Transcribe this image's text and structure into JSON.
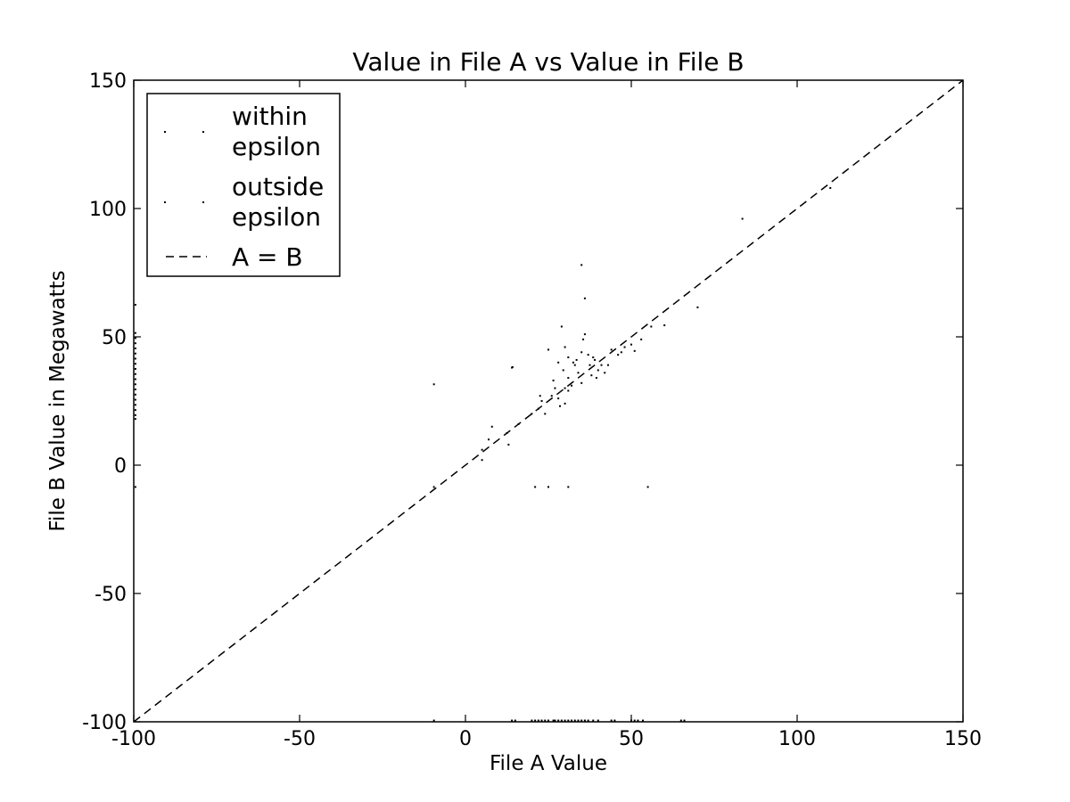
{
  "chart_data": {
    "type": "scatter",
    "title": "Value in File A vs Value in File B",
    "xlabel": "File A Value",
    "ylabel": "File B Value in Megawatts",
    "xlim": [
      -100,
      150
    ],
    "ylim": [
      -100,
      150
    ],
    "xticks": [
      -100,
      -50,
      0,
      50,
      100,
      150
    ],
    "yticks": [
      -100,
      -50,
      0,
      50,
      100,
      150
    ],
    "xtick_labels": [
      "-100",
      "-50",
      "0",
      "50",
      "100",
      "150"
    ],
    "ytick_labels": [
      "-100",
      "-50",
      "0",
      "50",
      "100",
      "150"
    ],
    "grid": false,
    "legend_position": "top-left",
    "legend": [
      {
        "label_lines": [
          "within",
          "epsilon"
        ],
        "marker": "point"
      },
      {
        "label_lines": [
          "outside",
          "epsilon"
        ],
        "marker": "point"
      },
      {
        "label_lines": [
          "A = B"
        ],
        "marker": "dashed-line"
      }
    ],
    "reference_line": {
      "name": "A = B",
      "x": [
        -100,
        150
      ],
      "y": [
        -100,
        150
      ],
      "style": "dashed"
    },
    "series": [
      {
        "marker": "point",
        "color": "#000000",
        "points": [
          [
            -99.5,
            62.5
          ],
          [
            -99.5,
            51.5
          ],
          [
            -99.5,
            49.5
          ],
          [
            -99.5,
            47.5
          ],
          [
            -99.5,
            45.5
          ],
          [
            -99.5,
            43.5
          ],
          [
            -99.5,
            41.5
          ],
          [
            -99.5,
            39.5
          ],
          [
            -99.5,
            37.5
          ],
          [
            -99.5,
            35.5
          ],
          [
            -99.5,
            33.5
          ],
          [
            -99.5,
            31.5
          ],
          [
            -99.5,
            29.5
          ],
          [
            -99.5,
            27.5
          ],
          [
            -99.5,
            25.5
          ],
          [
            -99.5,
            23.5
          ],
          [
            -99.5,
            21.5
          ],
          [
            -99.5,
            19.5
          ],
          [
            -99.5,
            18
          ],
          [
            -99.5,
            -8.5
          ],
          [
            -9.5,
            31.5
          ],
          [
            -9.5,
            -8.5
          ],
          [
            5,
            6
          ],
          [
            5,
            2
          ],
          [
            7,
            10
          ],
          [
            8,
            15
          ],
          [
            12.5,
            12.5
          ],
          [
            13,
            8
          ],
          [
            14,
            38
          ],
          [
            14.2,
            38.2
          ],
          [
            16,
            16
          ],
          [
            20,
            20
          ],
          [
            21,
            -8.5
          ],
          [
            22,
            22
          ],
          [
            22.5,
            27
          ],
          [
            23,
            25
          ],
          [
            24,
            20
          ],
          [
            25,
            45
          ],
          [
            25,
            -8.5
          ],
          [
            26,
            27
          ],
          [
            26.5,
            33
          ],
          [
            27,
            30
          ],
          [
            28,
            40
          ],
          [
            28,
            26
          ],
          [
            28.5,
            23
          ],
          [
            29,
            54
          ],
          [
            29.5,
            37
          ],
          [
            30,
            46
          ],
          [
            30,
            30
          ],
          [
            30,
            24
          ],
          [
            31,
            34
          ],
          [
            31,
            42
          ],
          [
            31,
            29
          ],
          [
            31,
            -8.5
          ],
          [
            32,
            31
          ],
          [
            32.5,
            40
          ],
          [
            33,
            39
          ],
          [
            33.5,
            41
          ],
          [
            34,
            36
          ],
          [
            35,
            78
          ],
          [
            35,
            44
          ],
          [
            35,
            32
          ],
          [
            35.5,
            49
          ],
          [
            36,
            51
          ],
          [
            36,
            65
          ],
          [
            37,
            43
          ],
          [
            37.5,
            39
          ],
          [
            38,
            35
          ],
          [
            38.5,
            42
          ],
          [
            39,
            41
          ],
          [
            39.5,
            34
          ],
          [
            40,
            37
          ],
          [
            41,
            39
          ],
          [
            42,
            36
          ],
          [
            43,
            39
          ],
          [
            44,
            45
          ],
          [
            46,
            43
          ],
          [
            47,
            44
          ],
          [
            48,
            46
          ],
          [
            50,
            47
          ],
          [
            51,
            44.5
          ],
          [
            53,
            49
          ],
          [
            55,
            -8.5
          ],
          [
            56,
            54
          ],
          [
            60,
            54.5
          ],
          [
            70,
            61.5
          ],
          [
            83.5,
            96
          ],
          [
            110,
            108
          ],
          [
            -9.5,
            -99.5
          ],
          [
            14,
            -99.5
          ],
          [
            15,
            -99.5
          ],
          [
            20,
            -99.5
          ],
          [
            21,
            -99.5
          ],
          [
            22,
            -99.5
          ],
          [
            23,
            -99.5
          ],
          [
            24,
            -99.5
          ],
          [
            25,
            -99.5
          ],
          [
            26.5,
            -99.5
          ],
          [
            27,
            -99.5
          ],
          [
            28,
            -99.5
          ],
          [
            29,
            -99.5
          ],
          [
            30,
            -99.5
          ],
          [
            31,
            -99.5
          ],
          [
            32,
            -99.5
          ],
          [
            33,
            -99.5
          ],
          [
            34,
            -99.5
          ],
          [
            35,
            -99.5
          ],
          [
            36,
            -99.5
          ],
          [
            37,
            -99.5
          ],
          [
            38.5,
            -99.5
          ],
          [
            40,
            -99.5
          ],
          [
            44,
            -99.5
          ],
          [
            45,
            -99.5
          ],
          [
            50,
            -99.5
          ],
          [
            51,
            -99.5
          ],
          [
            52,
            -99.5
          ],
          [
            53.5,
            -99.5
          ],
          [
            65,
            -99.5
          ],
          [
            66,
            -99.5
          ]
        ]
      }
    ]
  }
}
